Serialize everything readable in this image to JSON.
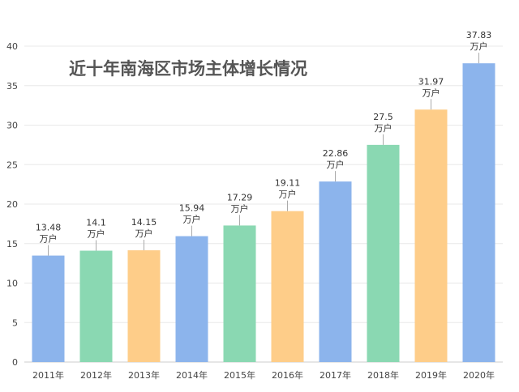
{
  "chart_data": {
    "type": "bar",
    "title": "近十年南海区市场主体增长情况",
    "categories": [
      "2011年",
      "2012年",
      "2013年",
      "2014年",
      "2015年",
      "2016年",
      "2017年",
      "2018年",
      "2019年",
      "2020年"
    ],
    "values": [
      13.48,
      14.1,
      14.15,
      15.94,
      17.29,
      19.11,
      22.86,
      27.5,
      31.97,
      37.83
    ],
    "value_labels": [
      "13.48",
      "14.1",
      "14.15",
      "15.94",
      "17.29",
      "19.11",
      "22.86",
      "27.5",
      "31.97",
      "37.83"
    ],
    "unit_label": "万户",
    "yticks": [
      "0",
      "5",
      "10",
      "15",
      "20",
      "25",
      "30",
      "35",
      "40"
    ],
    "ylim": [
      0,
      40
    ],
    "grid": true,
    "colors": [
      "#8cb4ec",
      "#8ad8b2",
      "#fecd89"
    ],
    "xlabel": "",
    "ylabel": ""
  }
}
